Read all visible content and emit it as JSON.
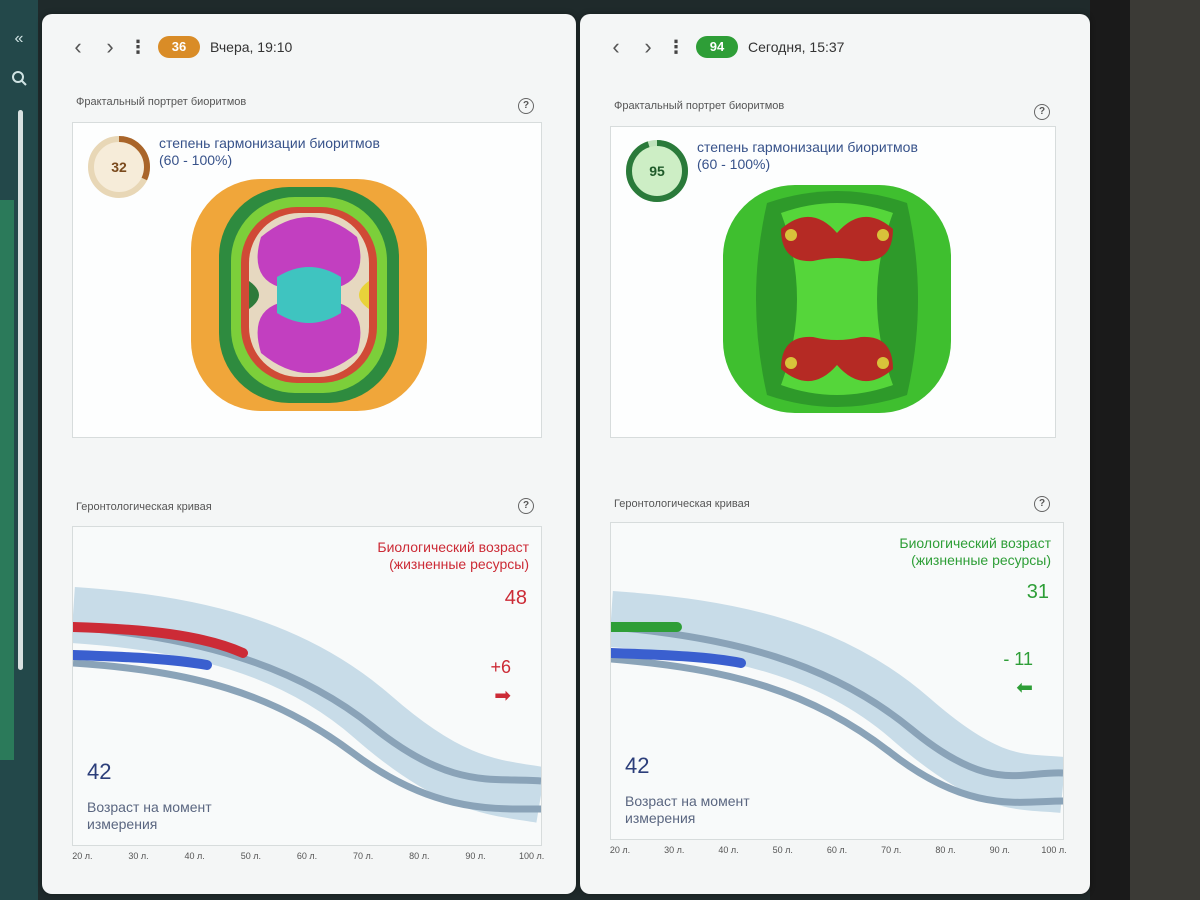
{
  "sidebar": {
    "collapse_icon": "«",
    "search_icon": "search-icon"
  },
  "panels": [
    {
      "header": {
        "badge": "36",
        "time": "Вчера, 19:10",
        "badge_color": "#d98c27"
      },
      "fractal": {
        "title": "Фрактальный портрет биоритмов",
        "score": "32",
        "score_fraction": 0.32,
        "ring_color": "#a9652a",
        "label_line1": "степень гармонизации биоритмов",
        "label_line2": "(60 - 100%)"
      },
      "gerontology": {
        "title": "Геронтологическая кривая",
        "bio_label_line1": "Биологический возраст",
        "bio_label_line2": "(жизненные ресурсы)",
        "bio_age": "48",
        "delta": "+6",
        "accent": "#cc2b36",
        "arrow": "arrow-right-icon",
        "measure_age": "42",
        "measure_label_line1": "Возраст на момент",
        "measure_label_line2": "измерения",
        "ticks": [
          "20 л.",
          "30 л.",
          "40 л.",
          "50 л.",
          "60 л.",
          "70 л.",
          "80 л.",
          "90 л.",
          "100 л."
        ]
      }
    },
    {
      "header": {
        "badge": "94",
        "time": "Сегодня, 15:37",
        "badge_color": "#2e9e37"
      },
      "fractal": {
        "title": "Фрактальный портрет биоритмов",
        "score": "95",
        "score_fraction": 0.95,
        "ring_color": "#2a7a3a",
        "label_line1": "степень гармонизации биоритмов",
        "label_line2": "(60 - 100%)"
      },
      "gerontology": {
        "title": "Геронтологическая кривая",
        "bio_label_line1": "Биологический возраст",
        "bio_label_line2": "(жизненные ресурсы)",
        "bio_age": "31",
        "delta": "- 11",
        "accent": "#2e9e37",
        "arrow": "arrow-left-icon",
        "measure_age": "42",
        "measure_label_line1": "Возраст на момент",
        "measure_label_line2": "измерения",
        "ticks": [
          "20 л.",
          "30 л.",
          "40 л.",
          "50 л.",
          "60 л.",
          "70 л.",
          "80 л.",
          "90 л.",
          "100 л."
        ]
      }
    }
  ]
}
